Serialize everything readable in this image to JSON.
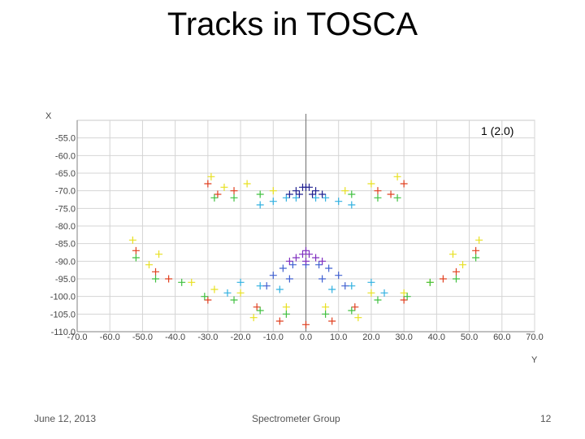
{
  "slide": {
    "title": "Tracks in TOSCA",
    "footer_date": "June 12, 2013",
    "footer_center": "Spectrometer Group",
    "page_number": "12"
  },
  "chart_data": {
    "type": "scatter",
    "title": "",
    "xlabel": "Y",
    "ylabel": "X",
    "xlim": [
      -70,
      70
    ],
    "ylim": [
      -110,
      -50
    ],
    "xticks": [
      "-70.0",
      "-60.0",
      "-50.0",
      "-40.0",
      "-30.0",
      "-20.0",
      "-10.0",
      "0.0",
      "10.0",
      "20.0",
      "30.0",
      "40.0",
      "50.0",
      "60.0",
      "70.0"
    ],
    "yticks": [
      "-55.0",
      "-60.0",
      "-65.0",
      "-70.0",
      "-75.0",
      "-80.0",
      "-85.0",
      "-90.0",
      "-95.0",
      "-100.0",
      "-105.0",
      "-110.0"
    ],
    "grid": true,
    "annotation": "1 (2.0)",
    "marker": "+",
    "series": [
      {
        "color": "#e8e020",
        "points": [
          [
            -29,
            -66
          ],
          [
            -25,
            -69
          ],
          [
            -18,
            -68
          ],
          [
            -10,
            -70
          ],
          [
            12,
            -70
          ],
          [
            20,
            -68
          ],
          [
            28,
            -66
          ],
          [
            -53,
            -84
          ],
          [
            -48,
            -91
          ],
          [
            -35,
            -96
          ],
          [
            -28,
            -98
          ],
          [
            -20,
            -99
          ],
          [
            20,
            -99
          ],
          [
            30,
            -99
          ],
          [
            38,
            -96
          ],
          [
            48,
            -91
          ],
          [
            53,
            -84
          ],
          [
            -16,
            -106
          ],
          [
            -6,
            -103
          ],
          [
            6,
            -103
          ],
          [
            16,
            -106
          ],
          [
            -45,
            -88
          ],
          [
            45,
            -88
          ]
        ]
      },
      {
        "color": "#e04020",
        "points": [
          [
            -30,
            -68
          ],
          [
            -27,
            -71
          ],
          [
            -22,
            -70
          ],
          [
            22,
            -70
          ],
          [
            26,
            -71
          ],
          [
            30,
            -68
          ],
          [
            -52,
            -87
          ],
          [
            -46,
            -93
          ],
          [
            -30,
            -101
          ],
          [
            -15,
            -103
          ],
          [
            15,
            -103
          ],
          [
            30,
            -101
          ],
          [
            46,
            -93
          ],
          [
            52,
            -87
          ],
          [
            -8,
            -107
          ],
          [
            0,
            -108
          ],
          [
            8,
            -107
          ],
          [
            -42,
            -95
          ],
          [
            42,
            -95
          ]
        ]
      },
      {
        "color": "#40c040",
        "points": [
          [
            -28,
            -72
          ],
          [
            -22,
            -72
          ],
          [
            -14,
            -71
          ],
          [
            14,
            -71
          ],
          [
            22,
            -72
          ],
          [
            28,
            -72
          ],
          [
            -52,
            -89
          ],
          [
            -46,
            -95
          ],
          [
            -38,
            -96
          ],
          [
            -31,
            -100
          ],
          [
            -22,
            -101
          ],
          [
            -14,
            -104
          ],
          [
            14,
            -104
          ],
          [
            22,
            -101
          ],
          [
            31,
            -100
          ],
          [
            38,
            -96
          ],
          [
            46,
            -95
          ],
          [
            52,
            -89
          ],
          [
            -6,
            -105
          ],
          [
            6,
            -105
          ]
        ]
      },
      {
        "color": "#30b0e0",
        "points": [
          [
            -14,
            -74
          ],
          [
            -10,
            -73
          ],
          [
            -6,
            -72
          ],
          [
            -3,
            -72
          ],
          [
            3,
            -72
          ],
          [
            6,
            -72
          ],
          [
            10,
            -73
          ],
          [
            14,
            -74
          ],
          [
            -20,
            -96
          ],
          [
            -14,
            -97
          ],
          [
            -8,
            -98
          ],
          [
            8,
            -98
          ],
          [
            14,
            -97
          ],
          [
            20,
            -96
          ],
          [
            -24,
            -99
          ],
          [
            24,
            -99
          ]
        ]
      },
      {
        "color": "#4060d0",
        "points": [
          [
            -7,
            -92
          ],
          [
            -4,
            -91
          ],
          [
            0,
            -91
          ],
          [
            4,
            -91
          ],
          [
            7,
            -92
          ],
          [
            -10,
            -94
          ],
          [
            10,
            -94
          ],
          [
            -12,
            -97
          ],
          [
            12,
            -97
          ],
          [
            -5,
            -95
          ],
          [
            5,
            -95
          ]
        ]
      },
      {
        "color": "#202090",
        "points": [
          [
            -3,
            -70
          ],
          [
            -1,
            -69
          ],
          [
            0,
            -69
          ],
          [
            1,
            -69
          ],
          [
            3,
            -70
          ],
          [
            -5,
            -71
          ],
          [
            5,
            -71
          ],
          [
            -2,
            -71
          ],
          [
            2,
            -71
          ]
        ]
      },
      {
        "color": "#8030c0",
        "points": [
          [
            -1,
            -88
          ],
          [
            0,
            -87
          ],
          [
            1,
            -88
          ],
          [
            -3,
            -89
          ],
          [
            3,
            -89
          ],
          [
            -5,
            -90
          ],
          [
            5,
            -90
          ],
          [
            0,
            -90
          ]
        ]
      }
    ]
  }
}
